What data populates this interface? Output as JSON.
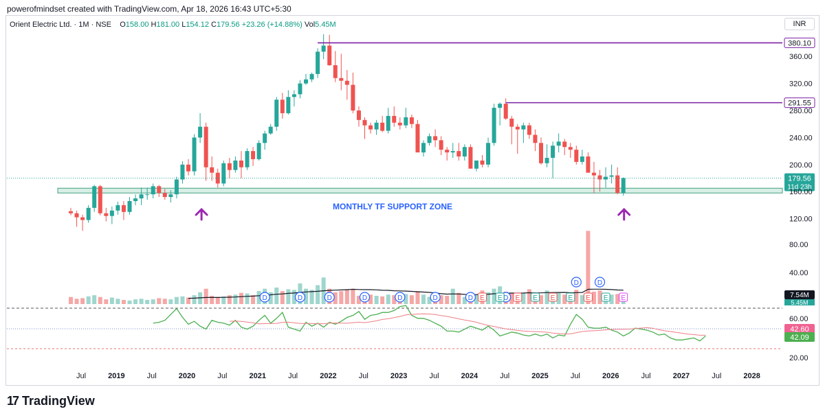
{
  "attribution": "powerofmindset created with TradingView.com, Apr 18, 2026 16:43 UTC+5:30",
  "symbol_bar": {
    "name": "Orient Electric Ltd.",
    "interval": "1M",
    "exchange": "NSE",
    "open_label": "O",
    "open": "158.00",
    "high_label": "H",
    "high": "181.00",
    "low_label": "L",
    "low": "154.12",
    "close_label": "C",
    "close": "179.56",
    "change": "+23.26 (+14.88%)",
    "vol_label": "Vol",
    "vol": "5.45M"
  },
  "currency": "INR",
  "brand": "TradingView",
  "colors": {
    "up": "#26a69a",
    "down": "#ef5350",
    "level": "#7b1fa2",
    "zone": "#3f9f7f",
    "annotation": "#2962ff",
    "arrow": "#9c27b0",
    "rsi": "#4caf50",
    "rsi_ma": "#ef7d84"
  },
  "chart_data": {
    "type": "candlestick",
    "price_axis": {
      "ticks": [
        120,
        160,
        200,
        240,
        280,
        320,
        360
      ],
      "tick_labels": [
        "120.00",
        "160.00",
        "200.00",
        "240.00",
        "280.00",
        "320.00",
        "360.00"
      ]
    },
    "time_axis": {
      "labels": [
        "Jul",
        "2019",
        "Jul",
        "2020",
        "Jul",
        "2021",
        "Jul",
        "2022",
        "Jul",
        "2023",
        "Jul",
        "2024",
        "Jul",
        "2025",
        "Jul",
        "2026",
        "Jul",
        "2027",
        "Jul",
        "2028"
      ]
    },
    "start_month": "2018-06",
    "candles": [
      [
        131,
        136,
        125,
        128
      ],
      [
        128,
        132,
        108,
        122
      ],
      [
        122,
        126,
        102,
        118
      ],
      [
        118,
        140,
        114,
        136
      ],
      [
        136,
        170,
        130,
        168
      ],
      [
        168,
        170,
        125,
        128
      ],
      [
        128,
        136,
        116,
        124
      ],
      [
        124,
        138,
        112,
        132
      ],
      [
        132,
        145,
        126,
        140
      ],
      [
        140,
        146,
        118,
        130
      ],
      [
        130,
        152,
        126,
        146
      ],
      [
        146,
        156,
        140,
        150
      ],
      [
        150,
        166,
        140,
        156
      ],
      [
        156,
        166,
        148,
        156
      ],
      [
        156,
        172,
        150,
        168
      ],
      [
        168,
        170,
        152,
        158
      ],
      [
        158,
        164,
        148,
        152
      ],
      [
        152,
        162,
        144,
        156
      ],
      [
        156,
        182,
        150,
        178
      ],
      [
        178,
        205,
        172,
        200
      ],
      [
        200,
        208,
        184,
        190
      ],
      [
        190,
        245,
        184,
        240
      ],
      [
        240,
        276,
        232,
        256
      ],
      [
        256,
        262,
        176,
        196
      ],
      [
        196,
        212,
        176,
        188
      ],
      [
        188,
        194,
        166,
        172
      ],
      [
        172,
        206,
        168,
        202
      ],
      [
        202,
        210,
        180,
        192
      ],
      [
        192,
        212,
        188,
        206
      ],
      [
        206,
        220,
        180,
        196
      ],
      [
        196,
        224,
        192,
        220
      ],
      [
        220,
        226,
        198,
        208
      ],
      [
        208,
        236,
        206,
        232
      ],
      [
        232,
        250,
        222,
        246
      ],
      [
        246,
        260,
        244,
        256
      ],
      [
        256,
        300,
        250,
        296
      ],
      [
        296,
        306,
        268,
        276
      ],
      [
        276,
        310,
        274,
        300
      ],
      [
        300,
        310,
        286,
        304
      ],
      [
        304,
        325,
        298,
        320
      ],
      [
        320,
        334,
        318,
        326
      ],
      [
        326,
        336,
        322,
        334
      ],
      [
        334,
        372,
        328,
        367
      ],
      [
        367,
        393,
        356,
        376
      ],
      [
        376,
        392,
        346,
        347
      ],
      [
        347,
        368,
        322,
        328
      ],
      [
        328,
        364,
        310,
        324
      ],
      [
        324,
        340,
        296,
        318
      ],
      [
        318,
        336,
        276,
        280
      ],
      [
        280,
        286,
        256,
        266
      ],
      [
        266,
        270,
        238,
        258
      ],
      [
        258,
        262,
        246,
        252
      ],
      [
        252,
        266,
        244,
        262
      ],
      [
        262,
        272,
        248,
        250
      ],
      [
        250,
        284,
        246,
        272
      ],
      [
        272,
        286,
        256,
        262
      ],
      [
        262,
        270,
        252,
        258
      ],
      [
        258,
        284,
        254,
        270
      ],
      [
        270,
        274,
        254,
        260
      ],
      [
        260,
        266,
        218,
        218
      ],
      [
        218,
        236,
        212,
        232
      ],
      [
        232,
        246,
        228,
        242
      ],
      [
        242,
        252,
        226,
        236
      ],
      [
        236,
        242,
        214,
        222
      ],
      [
        222,
        226,
        206,
        218
      ],
      [
        218,
        232,
        210,
        220
      ],
      [
        220,
        232,
        206,
        212
      ],
      [
        212,
        230,
        206,
        226
      ],
      [
        226,
        230,
        196,
        194
      ],
      [
        194,
        206,
        190,
        206
      ],
      [
        206,
        214,
        196,
        200
      ],
      [
        200,
        240,
        196,
        232
      ],
      [
        232,
        290,
        228,
        284
      ],
      [
        284,
        292,
        258,
        290
      ],
      [
        290,
        298,
        266,
        268
      ],
      [
        268,
        272,
        230,
        256
      ],
      [
        256,
        260,
        216,
        252
      ],
      [
        252,
        262,
        232,
        258
      ],
      [
        258,
        262,
        238,
        244
      ],
      [
        244,
        252,
        220,
        232
      ],
      [
        232,
        240,
        200,
        202
      ],
      [
        202,
        230,
        196,
        210
      ],
      [
        210,
        234,
        180,
        228
      ],
      [
        228,
        246,
        218,
        234
      ],
      [
        234,
        238,
        214,
        226
      ],
      [
        226,
        232,
        210,
        222
      ],
      [
        222,
        228,
        200,
        204
      ],
      [
        204,
        222,
        200,
        212
      ],
      [
        212,
        218,
        188,
        188
      ],
      [
        188,
        204,
        158,
        184
      ],
      [
        184,
        192,
        160,
        178
      ],
      [
        178,
        196,
        166,
        182
      ],
      [
        182,
        200,
        172,
        184
      ],
      [
        184,
        196,
        156,
        158
      ],
      [
        158,
        181,
        154,
        180
      ]
    ],
    "levels": [
      {
        "label": "380.10",
        "value": 380.1
      },
      {
        "label": "291.55",
        "value": 291.55
      }
    ],
    "support_zone": {
      "low": 154,
      "high": 160,
      "label": "MONTHLY TF SUPPORT ZONE"
    },
    "last_price": {
      "label": "179.56",
      "countdown": "11d 23h"
    },
    "volume": {
      "axis_ticks": [
        "40.00",
        "80.00"
      ],
      "last_label": "7.54M",
      "second_label": "5.45M",
      "values": [
        1.2,
        0.9,
        1.0,
        1.3,
        1.5,
        1.2,
        0.8,
        1.1,
        0.9,
        0.7,
        0.6,
        0.8,
        0.9,
        0.7,
        0.8,
        1.0,
        0.9,
        0.8,
        1.2,
        1.3,
        1.1,
        1.5,
        2.0,
        2.6,
        1.4,
        1.2,
        1.3,
        1.5,
        1.6,
        1.9,
        1.8,
        1.5,
        2.2,
        2.6,
        2.0,
        2.8,
        2.2,
        2.5,
        2.4,
        3.5,
        2.6,
        2.4,
        3.2,
        4.5,
        2.6,
        2.0,
        2.2,
        2.4,
        2.6,
        1.4,
        1.2,
        1.6,
        1.4,
        1.3,
        1.6,
        1.5,
        1.8,
        1.7,
        1.5,
        2.2,
        1.6,
        1.2,
        1.7,
        1.5,
        1.4,
        2.6,
        1.9,
        1.2,
        1.5,
        1.7,
        2.3,
        2.0,
        2.6,
        3.0,
        2.1,
        1.8,
        1.7,
        1.9,
        2.5,
        1.7,
        1.5,
        2.3,
        1.8,
        1.9,
        1.6,
        1.4,
        2.4,
        1.5,
        12.4,
        2.1,
        2.3,
        1.5,
        1.6,
        1.7,
        1.9
      ]
    },
    "events": {
      "dividends": [
        {
          "month": "2021-03",
          "label": "D"
        },
        {
          "month": "2021-09",
          "label": "D"
        },
        {
          "month": "2022-02",
          "label": "D"
        },
        {
          "month": "2022-08",
          "label": "D"
        },
        {
          "month": "2023-02",
          "label": "D"
        },
        {
          "month": "2023-08",
          "label": "D"
        },
        {
          "month": "2024-02",
          "label": "D"
        },
        {
          "month": "2024-08",
          "label": "D"
        },
        {
          "month": "2025-08",
          "label": "D"
        },
        {
          "month": "2025-12",
          "label": "D"
        }
      ],
      "earnings": [
        {
          "month": "2024-04",
          "label": "E"
        },
        {
          "month": "2024-07",
          "label": "E"
        },
        {
          "month": "2024-10",
          "label": "E"
        },
        {
          "month": "2025-01",
          "label": "E"
        },
        {
          "month": "2025-04",
          "label": "E"
        },
        {
          "month": "2025-07",
          "label": "E"
        },
        {
          "month": "2025-10",
          "label": "E"
        },
        {
          "month": "2026-01",
          "label": "E"
        },
        {
          "month": "2026-04",
          "label": "E"
        }
      ]
    },
    "rsi": {
      "axis_ticks": [
        "20.00",
        "60.00"
      ],
      "levels": [
        70,
        50,
        30
      ],
      "rsi_label": "42.09",
      "ma_label": "42.60",
      "values": [
        55,
        56,
        58,
        64,
        70,
        61,
        54,
        57,
        52,
        49,
        58,
        56,
        55,
        53,
        58,
        51,
        49,
        52,
        58,
        63,
        55,
        60,
        66,
        51,
        49,
        47,
        56,
        52,
        55,
        51,
        56,
        54,
        57,
        61,
        63,
        67,
        59,
        63,
        64,
        66,
        66,
        68,
        72,
        73,
        63,
        60,
        60,
        58,
        55,
        52,
        47,
        47,
        46,
        49,
        52,
        50,
        48,
        52,
        48,
        42,
        44,
        46,
        45,
        43,
        42,
        44,
        42,
        44,
        40,
        43,
        42,
        54,
        64,
        59,
        51,
        50,
        50,
        51,
        48,
        46,
        42,
        45,
        50,
        49,
        48,
        46,
        43,
        44,
        40,
        38,
        38,
        39,
        40,
        37,
        42
      ],
      "ma_values": [
        null,
        null,
        null,
        null,
        null,
        null,
        null,
        null,
        null,
        null,
        null,
        null,
        null,
        null,
        null,
        null,
        null,
        null,
        null,
        null,
        null,
        null,
        null,
        null,
        null,
        null,
        null,
        null,
        null,
        null,
        null,
        null,
        null,
        null,
        null,
        null,
        null,
        null,
        null,
        null,
        null,
        null,
        null,
        null,
        null,
        null,
        null,
        null,
        null,
        null,
        null,
        null,
        null,
        null,
        null,
        null,
        null,
        null,
        null,
        null,
        null,
        null,
        null,
        null,
        null,
        null,
        null,
        null,
        null,
        null,
        null,
        null,
        null,
        null,
        null,
        null,
        null,
        null,
        null,
        null,
        null,
        null,
        null,
        null,
        null,
        null,
        null,
        null,
        null,
        null,
        null,
        null,
        null,
        null,
        null
      ]
    }
  }
}
